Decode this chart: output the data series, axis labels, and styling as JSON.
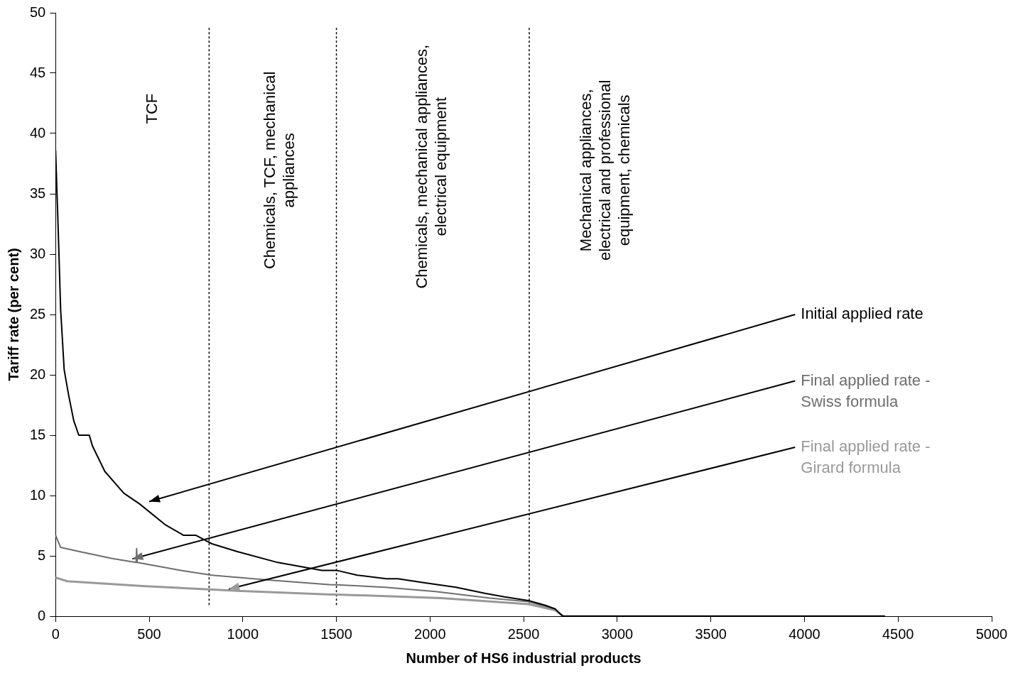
{
  "chart_data": {
    "type": "line",
    "xlabel": "Number of HS6 industrial products",
    "ylabel": "Tariff rate (per cent)",
    "xlim": [
      0,
      5000
    ],
    "xticks": [
      0,
      500,
      1000,
      1500,
      2000,
      2500,
      3000,
      3500,
      4000,
      4500,
      5000
    ],
    "ylim": [
      0,
      50
    ],
    "yticks": [
      0,
      5,
      10,
      15,
      20,
      25,
      30,
      35,
      40,
      45,
      50
    ],
    "grid": false,
    "legend": false,
    "marker": "none",
    "line_style": "solid",
    "series": [
      {
        "name": "Initial applied rate",
        "color": "#000000",
        "x": [
          0,
          12,
          19,
          27,
          46,
          70,
          97,
          124,
          180,
          197,
          263,
          364,
          449,
          584,
          684,
          750,
          835,
          971,
          1187,
          1423,
          1500,
          1612,
          1767,
          1829,
          1960,
          2139,
          2293,
          2398,
          2525,
          2617,
          2668,
          2695,
          2710,
          4430
        ],
        "values": [
          38.6,
          33,
          29.5,
          25.4,
          20.4,
          18.3,
          16.2,
          15,
          15,
          14.1,
          12,
          10.2,
          9.3,
          7.6,
          6.7,
          6.7,
          6,
          5.35,
          4.45,
          3.8,
          3.8,
          3.4,
          3.1,
          3.1,
          2.8,
          2.4,
          1.9,
          1.6,
          1.3,
          0.9,
          0.6,
          0.2,
          0,
          0
        ]
      },
      {
        "name": "Final applied rate - Swiss formula",
        "color": "#6e6e6e",
        "x": [
          0,
          27,
          128,
          298,
          430,
          433,
          436,
          669,
          835,
          1137,
          1473,
          1500,
          1760,
          2030,
          2320,
          2525,
          2668,
          2695,
          2710,
          4430
        ],
        "values": [
          6.7,
          5.7,
          5.35,
          4.8,
          4.45,
          5.6,
          4.45,
          3.8,
          3.4,
          3,
          2.6,
          2.6,
          2.4,
          2.05,
          1.5,
          1.2,
          0.6,
          0.2,
          0,
          0
        ]
      },
      {
        "name": "Final applied rate - Girard formula",
        "color": "#999999",
        "x": [
          0,
          62,
          464,
          971,
          1473,
          1500,
          2061,
          2525,
          2668,
          2695,
          2710,
          4430
        ],
        "values": [
          3.2,
          2.9,
          2.5,
          2.1,
          1.8,
          1.8,
          1.5,
          1,
          0.5,
          0.2,
          0,
          0
        ]
      }
    ],
    "ref_lines": [
      {
        "axis": "x",
        "value": 820,
        "color": "#000000",
        "line_style": "dotted"
      },
      {
        "axis": "x",
        "value": 1500,
        "color": "#000000",
        "line_style": "dotted"
      },
      {
        "axis": "x",
        "value": 2530,
        "color": "#000000",
        "line_style": "dotted"
      }
    ],
    "annotations": [
      "TCF",
      "Chemicals, TCF, mechanical appliances",
      "Chemicals, mechanical appliances, electrical equipment",
      "Mechanical appliances, electrical and professional equipment, chemicals"
    ]
  }
}
